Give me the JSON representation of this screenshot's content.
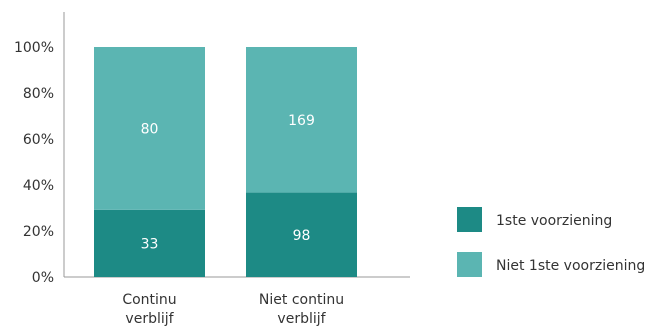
{
  "colors": {
    "first": "#1d8a85",
    "not_first": "#5bb5b2",
    "axis": "#999999",
    "text": "#333333"
  },
  "chart_data": {
    "type": "bar",
    "stacked": true,
    "normalized": true,
    "categories": [
      [
        "Continu",
        "verblijf"
      ],
      [
        "Niet continu",
        "verblijf"
      ]
    ],
    "series": [
      {
        "name": "1ste voorziening",
        "values": [
          33,
          98
        ]
      },
      {
        "name": "Niet 1ste voorziening",
        "values": [
          80,
          169
        ]
      }
    ],
    "yticks": [
      "0%",
      "20%",
      "40%",
      "60%",
      "80%",
      "100%"
    ],
    "ylim": [
      0,
      100
    ],
    "legend": "right",
    "grid": false
  }
}
